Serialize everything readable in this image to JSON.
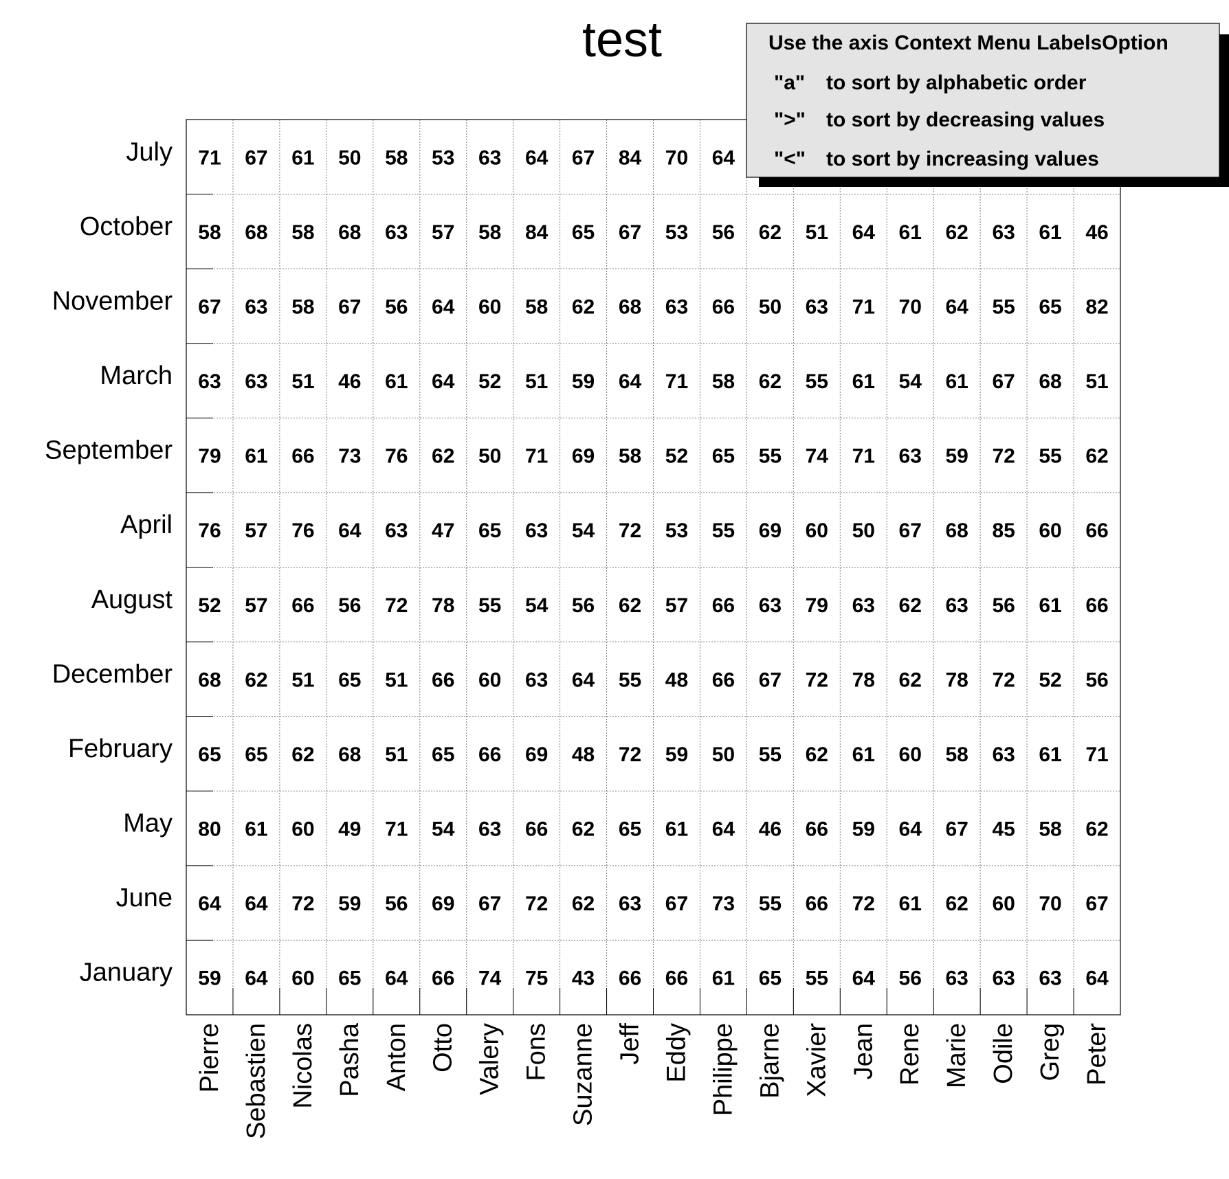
{
  "chart_data": {
    "type": "table",
    "title": "test",
    "rows": [
      "July",
      "October",
      "November",
      "March",
      "September",
      "April",
      "August",
      "December",
      "February",
      "May",
      "June",
      "January"
    ],
    "columns": [
      "Pierre",
      "Sebastien",
      "Nicolas",
      "Pasha",
      "Anton",
      "Otto",
      "Valery",
      "Fons",
      "Suzanne",
      "Jeff",
      "Eddy",
      "Philippe",
      "Bjarne",
      "Xavier",
      "Jean",
      "Rene",
      "Marie",
      "Odile",
      "Greg",
      "Peter"
    ],
    "values": [
      [
        71,
        67,
        61,
        50,
        58,
        53,
        63,
        64,
        67,
        84,
        70,
        64,
        null,
        null,
        null,
        null,
        null,
        null,
        null,
        null
      ],
      [
        58,
        68,
        58,
        68,
        63,
        57,
        58,
        84,
        65,
        67,
        53,
        56,
        62,
        51,
        64,
        61,
        62,
        63,
        61,
        46
      ],
      [
        67,
        63,
        58,
        67,
        56,
        64,
        60,
        58,
        62,
        68,
        63,
        66,
        50,
        63,
        71,
        70,
        64,
        55,
        65,
        82
      ],
      [
        63,
        63,
        51,
        46,
        61,
        64,
        52,
        51,
        59,
        64,
        71,
        58,
        62,
        55,
        61,
        54,
        61,
        67,
        68,
        51
      ],
      [
        79,
        61,
        66,
        73,
        76,
        62,
        50,
        71,
        69,
        58,
        52,
        65,
        55,
        74,
        71,
        63,
        59,
        72,
        55,
        62
      ],
      [
        76,
        57,
        76,
        64,
        63,
        47,
        65,
        63,
        54,
        72,
        53,
        55,
        69,
        60,
        50,
        67,
        68,
        85,
        60,
        66
      ],
      [
        52,
        57,
        66,
        56,
        72,
        78,
        55,
        54,
        56,
        62,
        57,
        66,
        63,
        79,
        63,
        62,
        63,
        56,
        61,
        66
      ],
      [
        68,
        62,
        51,
        65,
        51,
        66,
        60,
        63,
        64,
        55,
        48,
        66,
        67,
        72,
        78,
        62,
        78,
        72,
        52,
        56
      ],
      [
        65,
        65,
        62,
        68,
        51,
        65,
        66,
        69,
        48,
        72,
        59,
        50,
        55,
        62,
        61,
        60,
        58,
        63,
        61,
        71
      ],
      [
        80,
        61,
        60,
        49,
        71,
        54,
        63,
        66,
        62,
        65,
        61,
        64,
        46,
        66,
        59,
        64,
        67,
        45,
        58,
        62
      ],
      [
        64,
        64,
        72,
        59,
        56,
        69,
        67,
        72,
        62,
        63,
        67,
        73,
        55,
        66,
        72,
        61,
        62,
        60,
        70,
        67
      ],
      [
        59,
        64,
        60,
        65,
        64,
        66,
        74,
        75,
        43,
        66,
        66,
        61,
        65,
        55,
        64,
        56,
        63,
        63,
        63,
        64
      ]
    ],
    "grid": true,
    "legend_placement": "top-right"
  },
  "legend": {
    "header": "Use the axis Context Menu LabelsOption",
    "items": [
      {
        "key": "\"a\"",
        "text": "to sort by alphabetic order"
      },
      {
        "key": "\">\"",
        "text": "to sort by decreasing values"
      },
      {
        "key": "\"<\"",
        "text": "to sort by increasing values"
      }
    ]
  },
  "colors": {
    "legend_bg": "#e4e4e4",
    "legend_shadow": "#000000",
    "text": "#000000",
    "grid": "#808080"
  }
}
